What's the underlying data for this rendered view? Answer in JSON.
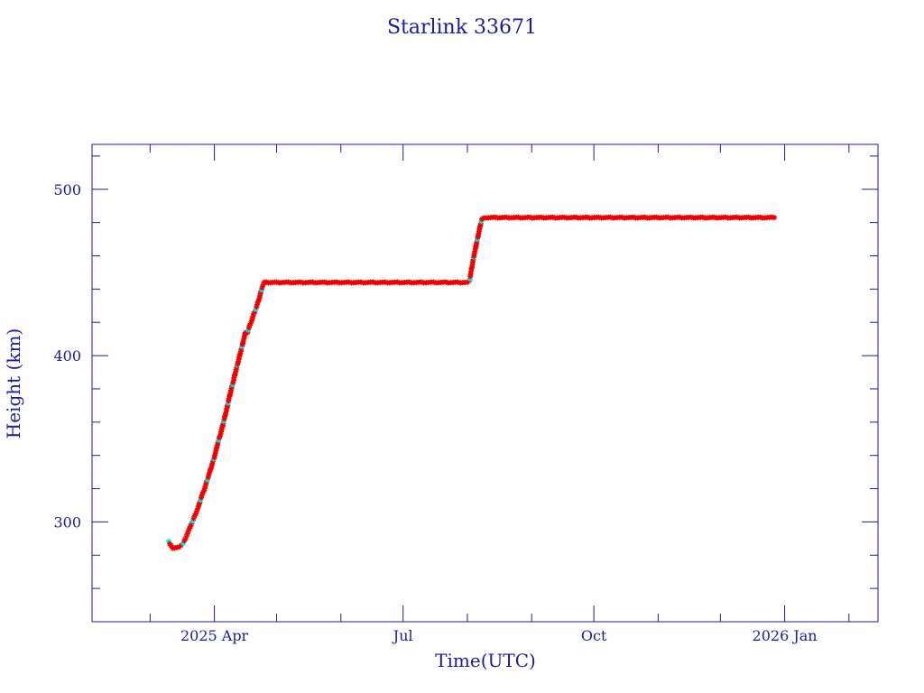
{
  "chart_data": {
    "type": "scatter",
    "title": "Starlink 33671",
    "xlabel": "Time(UTC)",
    "ylabel": "Height (km)",
    "xlim": [
      "2025-02-01",
      "2026-02-15"
    ],
    "ylim": [
      240,
      527
    ],
    "x_ticks": [
      {
        "date": "2025-04-01",
        "label": "2025 Apr"
      },
      {
        "date": "2025-07-01",
        "label": "Jul"
      },
      {
        "date": "2025-10-01",
        "label": "Oct"
      },
      {
        "date": "2026-01-01",
        "label": "2026 Jan"
      }
    ],
    "y_ticks": [
      300,
      400,
      500
    ],
    "grid": false,
    "colors": {
      "axis": "#1a1aa6",
      "marker": "#ee0000",
      "marker_alt": "#00e5e5"
    },
    "series": [
      {
        "x": [
          "2025-03-10",
          "2025-03-11",
          "2025-03-12",
          "2025-03-13",
          "2025-03-14",
          "2025-03-15",
          "2025-03-16",
          "2025-03-17",
          "2025-03-18",
          "2025-03-19",
          "2025-03-20",
          "2025-03-21",
          "2025-03-22",
          "2025-03-23",
          "2025-03-24",
          "2025-03-25",
          "2025-03-26",
          "2025-03-27",
          "2025-03-28",
          "2025-03-29",
          "2025-03-30",
          "2025-03-31",
          "2025-04-01",
          "2025-04-02",
          "2025-04-03",
          "2025-04-04",
          "2025-04-05",
          "2025-04-06",
          "2025-04-07",
          "2025-04-08",
          "2025-04-09",
          "2025-04-10",
          "2025-04-11",
          "2025-04-12",
          "2025-04-13",
          "2025-04-14",
          "2025-04-15",
          "2025-04-16",
          "2025-04-17",
          "2025-04-18",
          "2025-04-19",
          "2025-04-20",
          "2025-04-21",
          "2025-04-22",
          "2025-04-23",
          "2025-04-24",
          "2025-04-25",
          "2025-04-26",
          "2025-04-27",
          "2025-04-28",
          "2025-04-29",
          "2025-04-30"
        ],
        "y": [
          288,
          286,
          284,
          284,
          285,
          285,
          286,
          287,
          290,
          293,
          296,
          299,
          302,
          305,
          308,
          312,
          316,
          319,
          323,
          327,
          331,
          335,
          339,
          344,
          349,
          353,
          358,
          363,
          368,
          374,
          379,
          384,
          389,
          394,
          399,
          404,
          409,
          414,
          414,
          418,
          421,
          425,
          428,
          432,
          436,
          441,
          444,
          444,
          444,
          444,
          444,
          444
        ]
      },
      {
        "x": [
          "2025-05-02",
          "2025-05-09",
          "2025-05-16",
          "2025-05-23",
          "2025-05-30",
          "2025-06-06",
          "2025-06-13",
          "2025-06-20",
          "2025-06-27",
          "2025-07-04",
          "2025-07-11",
          "2025-07-18",
          "2025-07-25",
          "2025-08-01"
        ],
        "y": [
          444,
          444,
          444,
          444,
          444,
          444,
          444,
          444,
          444,
          444,
          444,
          444,
          444,
          444
        ]
      },
      {
        "x": [
          "2025-08-02",
          "2025-08-03",
          "2025-08-04",
          "2025-08-05",
          "2025-08-06",
          "2025-08-07",
          "2025-08-08"
        ],
        "y": [
          445,
          452,
          459,
          465,
          471,
          477,
          482
        ]
      },
      {
        "x": [
          "2025-08-10",
          "2025-08-20",
          "2025-08-30",
          "2025-09-09",
          "2025-09-19",
          "2025-09-29",
          "2025-10-09",
          "2025-10-19",
          "2025-10-29",
          "2025-11-08",
          "2025-11-18",
          "2025-11-28",
          "2025-12-08",
          "2025-12-18",
          "2025-12-27"
        ],
        "y": [
          483,
          483,
          483,
          483,
          483,
          483,
          483,
          483,
          483,
          483,
          483,
          483,
          483,
          483,
          483
        ]
      }
    ]
  }
}
